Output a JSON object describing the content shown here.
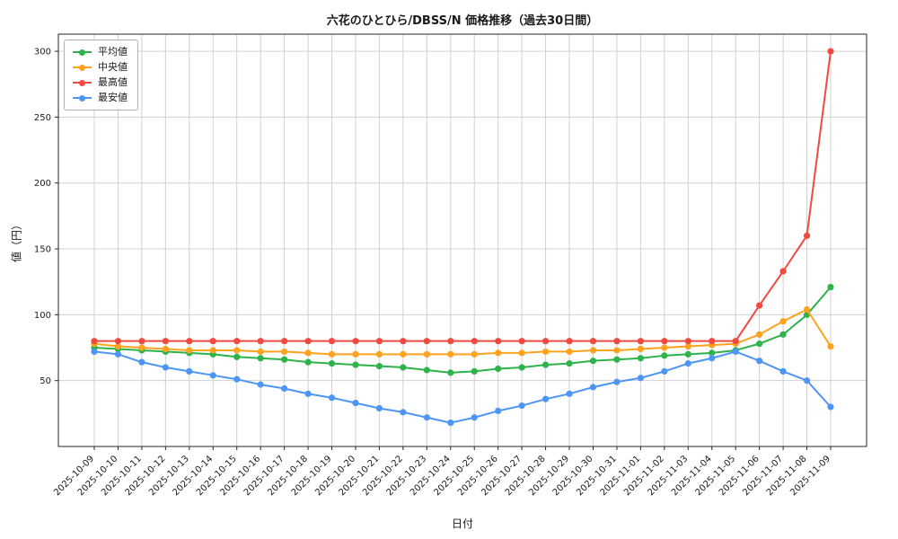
{
  "title": "六花のひとひら/DBSS/N 価格推移（過去30日間）",
  "axes": {
    "xlabel": "日付",
    "ylabel": "値（円）"
  },
  "chart_data": {
    "type": "line",
    "title": "六花のひとひら/DBSS/N 価格推移（過去30日間）",
    "xlabel": "日付",
    "ylabel": "値（円）",
    "x": [
      "2025-10-09",
      "2025-10-10",
      "2025-10-11",
      "2025-10-12",
      "2025-10-13",
      "2025-10-14",
      "2025-10-15",
      "2025-10-16",
      "2025-10-17",
      "2025-10-18",
      "2025-10-19",
      "2025-10-20",
      "2025-10-21",
      "2025-10-22",
      "2025-10-23",
      "2025-10-24",
      "2025-10-25",
      "2025-10-26",
      "2025-10-27",
      "2025-10-28",
      "2025-10-29",
      "2025-10-30",
      "2025-10-31",
      "2025-11-01",
      "2025-11-02",
      "2025-11-03",
      "2025-11-04",
      "2025-11-05",
      "2025-11-06",
      "2025-11-07",
      "2025-11-08",
      "2025-11-09"
    ],
    "series": [
      {
        "id": "average",
        "name": "平均値",
        "color": "#2db34a",
        "values": [
          75,
          74,
          73,
          72,
          71,
          70,
          68,
          67,
          66,
          64,
          63,
          62,
          61,
          60,
          58,
          56,
          57,
          59,
          60,
          62,
          63,
          65,
          66,
          67,
          69,
          70,
          71,
          73,
          78,
          85,
          100,
          121
        ]
      },
      {
        "id": "median",
        "name": "中央値",
        "color": "#ffa21e",
        "values": [
          78,
          76,
          75,
          74,
          73,
          73,
          73,
          72,
          72,
          71,
          70,
          70,
          70,
          70,
          70,
          70,
          70,
          71,
          71,
          72,
          72,
          73,
          73,
          74,
          75,
          76,
          77,
          78,
          85,
          95,
          104,
          76
        ]
      },
      {
        "id": "max",
        "name": "最高値",
        "color": "#f04a42",
        "values": [
          80,
          80,
          80,
          80,
          80,
          80,
          80,
          80,
          80,
          80,
          80,
          80,
          80,
          80,
          80,
          80,
          80,
          80,
          80,
          80,
          80,
          80,
          80,
          80,
          80,
          80,
          80,
          80,
          107,
          133,
          160,
          300
        ]
      },
      {
        "id": "min",
        "name": "最安値",
        "color": "#4d96f5",
        "values": [
          72,
          70,
          64,
          60,
          57,
          54,
          51,
          47,
          44,
          40,
          37,
          33,
          29,
          26,
          22,
          18,
          22,
          27,
          31,
          36,
          40,
          45,
          49,
          52,
          57,
          63,
          67,
          72,
          65,
          57,
          50,
          30
        ]
      }
    ],
    "yticks": [
      50,
      100,
      150,
      200,
      250,
      300
    ],
    "ylim": [
      0,
      313
    ],
    "grid": true,
    "grid_color": "#d0d0d0",
    "spine_color": "#262626",
    "legend_position": "upper-left"
  }
}
